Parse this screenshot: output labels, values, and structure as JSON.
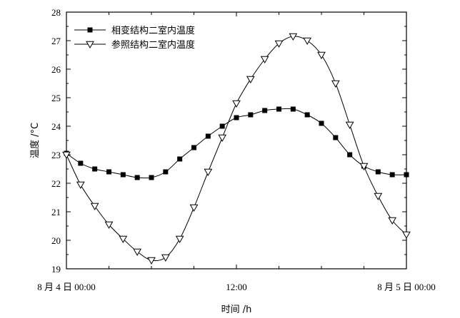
{
  "chart_data": {
    "type": "line",
    "title": "",
    "xlabel": "时间 /h",
    "ylabel": "温度 /°C",
    "ylim": [
      19,
      28
    ],
    "yticks": [
      19,
      20,
      21,
      22,
      23,
      24,
      25,
      26,
      27,
      28
    ],
    "xlim": [
      0,
      24
    ],
    "xtick_labels": [
      {
        "x": 0,
        "label": "8 月 4 日 00:00"
      },
      {
        "x": 12,
        "label": "12:00"
      },
      {
        "x": 24,
        "label": "8 月 5 日 00:00"
      }
    ],
    "grid": false,
    "legend_position": "top-left",
    "series": [
      {
        "name": "相变结构二室内温度",
        "marker": "square-filled",
        "x": [
          0,
          1,
          2,
          3,
          4,
          5,
          6,
          7,
          8,
          9,
          10,
          11,
          12,
          13,
          14,
          15,
          16,
          17,
          18,
          19,
          20,
          21,
          22,
          23,
          24
        ],
        "values": [
          23.05,
          22.7,
          22.5,
          22.4,
          22.3,
          22.2,
          22.2,
          22.4,
          22.85,
          23.25,
          23.65,
          24.0,
          24.3,
          24.4,
          24.55,
          24.6,
          24.6,
          24.4,
          24.1,
          23.6,
          23.0,
          22.6,
          22.4,
          22.3,
          22.3
        ]
      },
      {
        "name": "参照结构二室内温度",
        "marker": "triangle-down-open",
        "x": [
          0,
          1,
          2,
          3,
          4,
          5,
          6,
          7,
          8,
          9,
          10,
          11,
          12,
          13,
          14,
          15,
          16,
          17,
          18,
          19,
          20,
          21,
          22,
          23,
          24
        ],
        "values": [
          23.0,
          21.95,
          21.2,
          20.55,
          20.05,
          19.6,
          19.3,
          19.4,
          20.05,
          21.15,
          22.4,
          23.6,
          24.8,
          25.65,
          26.35,
          26.9,
          27.15,
          27.0,
          26.5,
          25.5,
          24.05,
          22.6,
          21.55,
          20.7,
          20.2
        ]
      }
    ]
  }
}
